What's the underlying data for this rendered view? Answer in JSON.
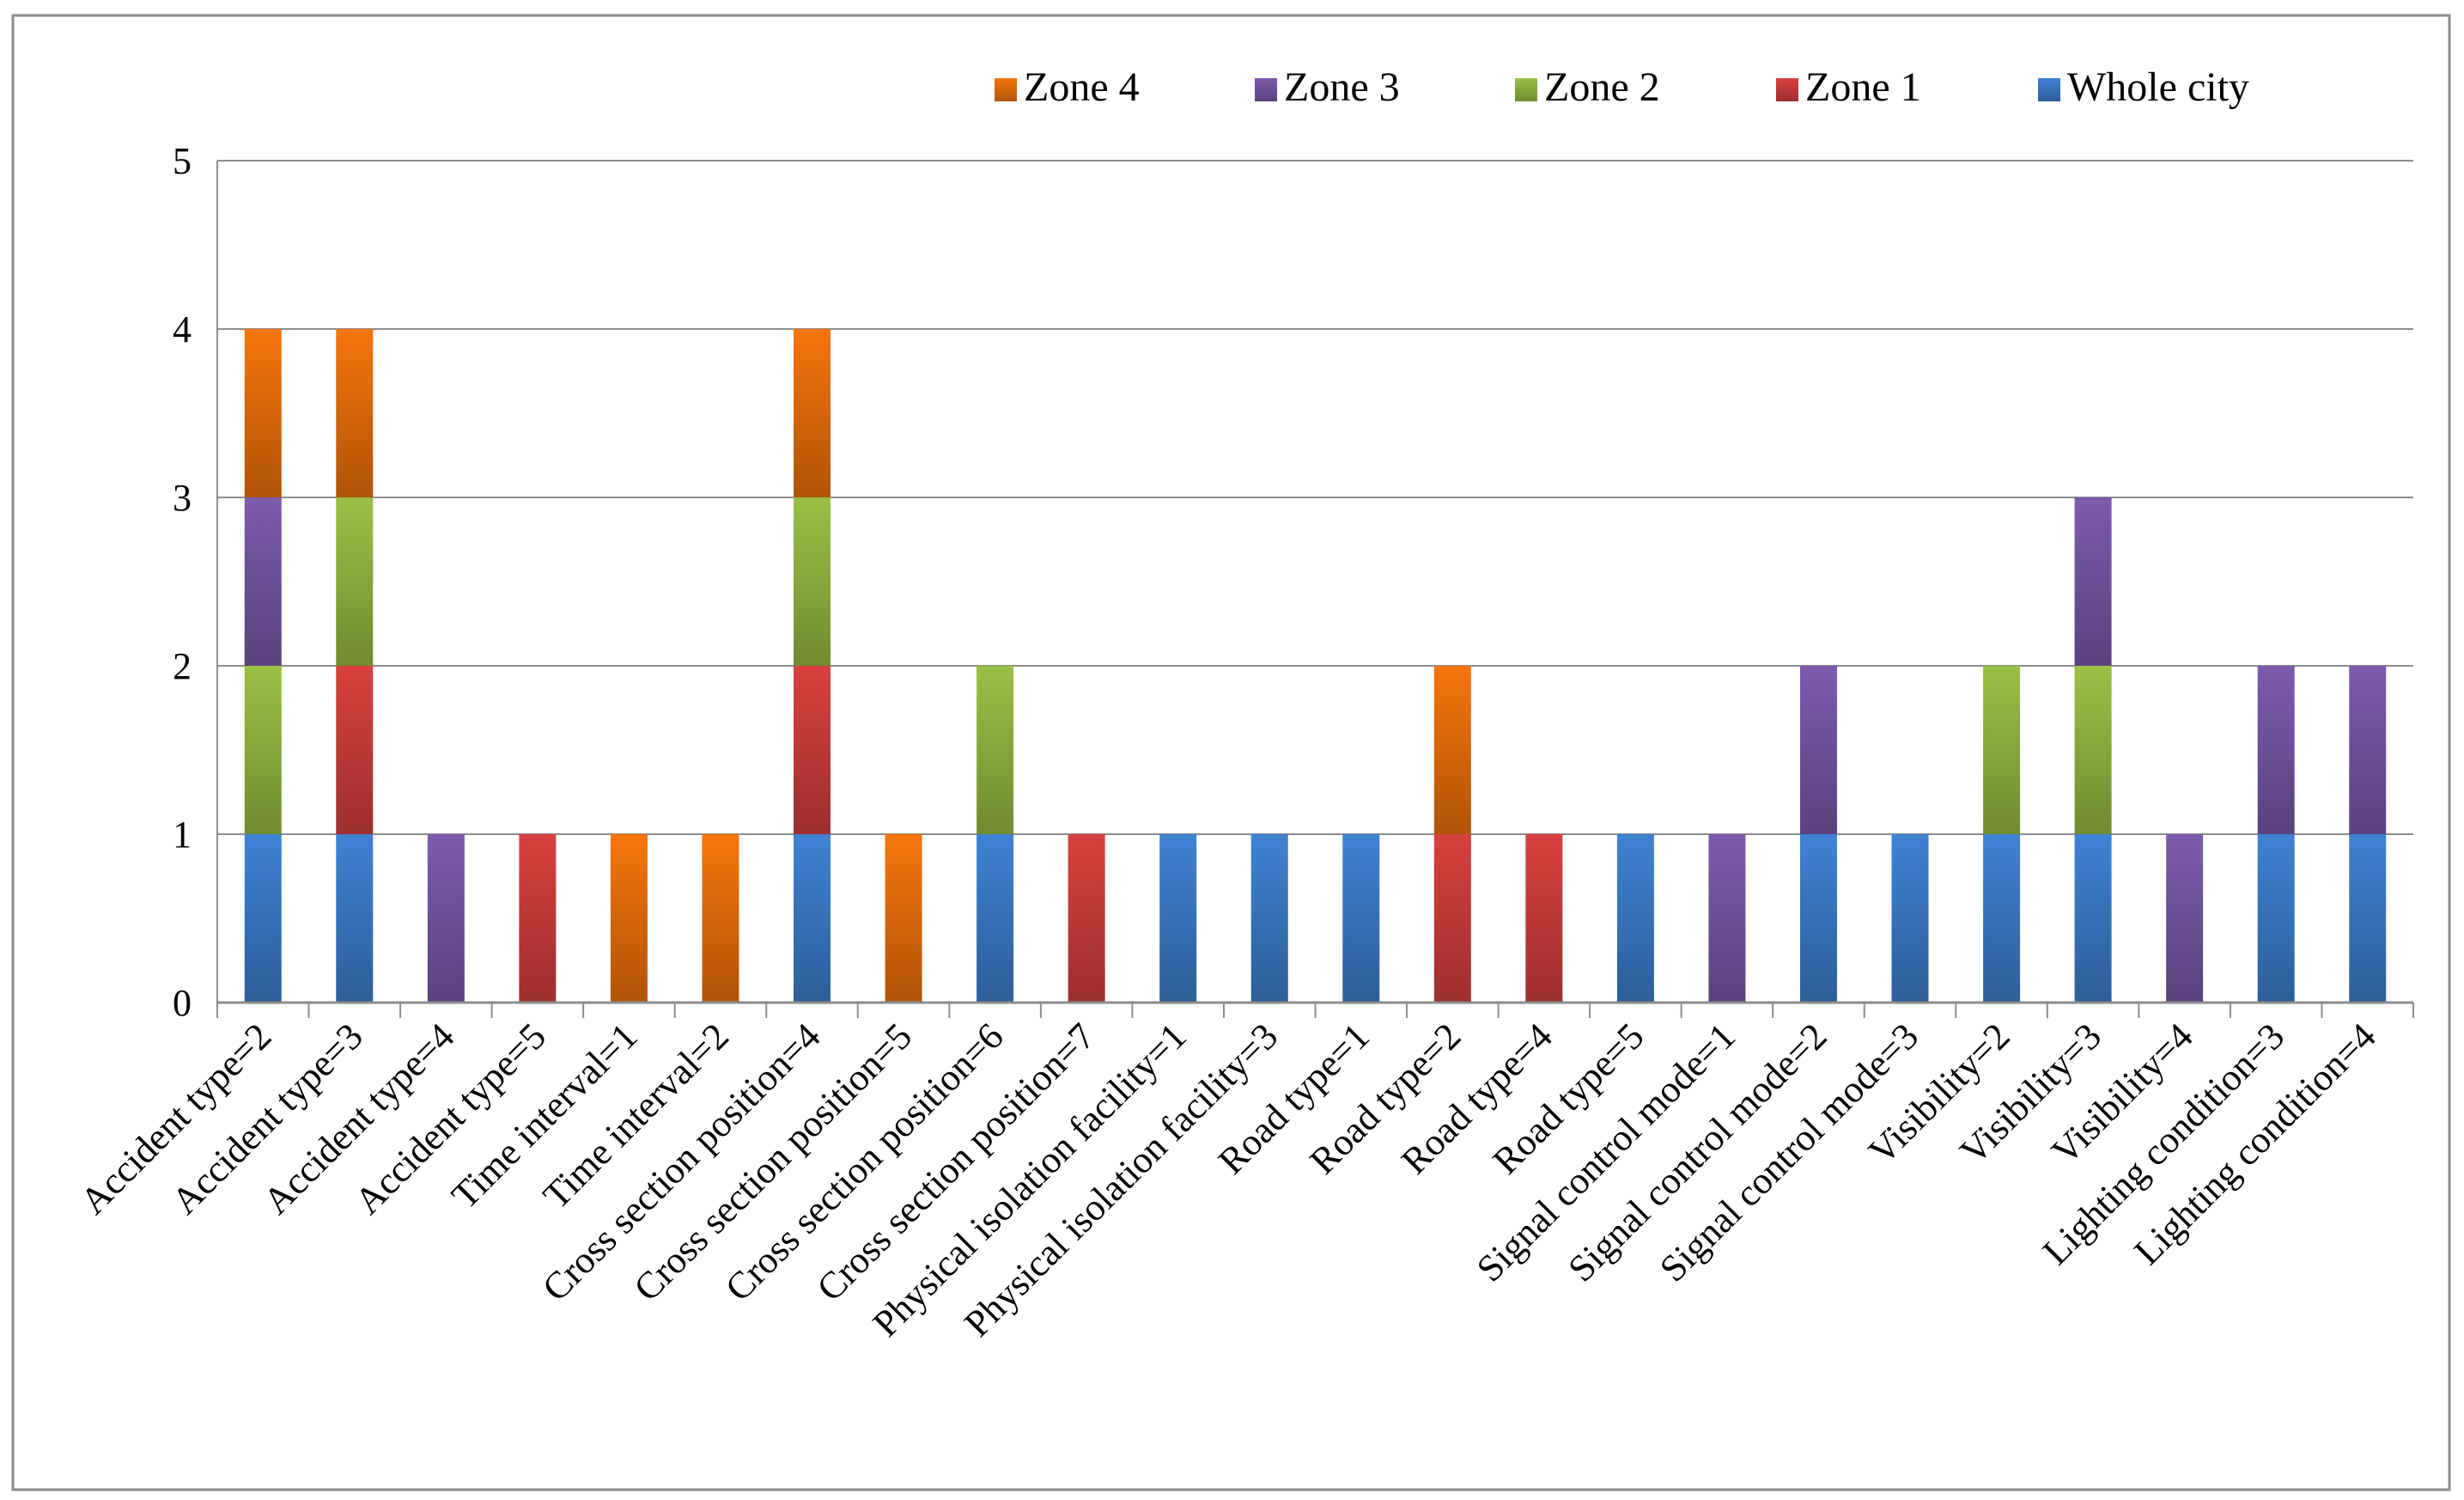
{
  "chart_data": {
    "type": "bar",
    "stacked": true,
    "title": "",
    "xlabel": "",
    "ylabel": "",
    "ylim": [
      0,
      5
    ],
    "yticks": [
      "0",
      "1",
      "2",
      "3",
      "4",
      "5"
    ],
    "grid": true,
    "legend_position": "top-right",
    "legend_order": [
      "Zone 4",
      "Zone 3",
      "Zone 2",
      "Zone 1",
      "Whole city"
    ],
    "categories": [
      "Accident type=2",
      "Accident type=3",
      "Accident type=4",
      "Accident type=5",
      "Time interval=1",
      "Time interval=2",
      "Cross section position=4",
      "Cross section position=5",
      "Cross section position=6",
      "Cross section position=7",
      "Physical isolation facility=1",
      "Physical isolation facility=3",
      "Road type=1",
      "Road type=2",
      "Road type=4",
      "Road type=5",
      "Signal control mode=1",
      "Signal control mode=2",
      "Signal control mode=3",
      "Visibility=2",
      "Visibility=3",
      "Visibility=4",
      "Lighting condition=3",
      "Lighting condition=4"
    ],
    "series": [
      {
        "name": "Whole city",
        "color": "#3a78c4",
        "values": [
          1,
          1,
          0,
          0,
          0,
          0,
          1,
          0,
          1,
          0,
          1,
          1,
          1,
          0,
          0,
          1,
          0,
          1,
          1,
          1,
          1,
          0,
          1,
          1
        ]
      },
      {
        "name": "Zone 1",
        "color": "#c83c3a",
        "values": [
          0,
          1,
          0,
          1,
          0,
          0,
          1,
          0,
          0,
          1,
          0,
          0,
          0,
          1,
          1,
          0,
          0,
          0,
          0,
          0,
          0,
          0,
          0,
          0
        ]
      },
      {
        "name": "Zone 2",
        "color": "#8fb23f",
        "values": [
          1,
          1,
          0,
          0,
          0,
          0,
          1,
          0,
          1,
          0,
          0,
          0,
          0,
          0,
          0,
          0,
          0,
          0,
          0,
          1,
          1,
          0,
          0,
          0
        ]
      },
      {
        "name": "Zone 3",
        "color": "#7454a0",
        "values": [
          1,
          0,
          1,
          0,
          0,
          0,
          0,
          0,
          0,
          0,
          0,
          0,
          0,
          0,
          0,
          0,
          1,
          1,
          0,
          0,
          1,
          1,
          1,
          1
        ]
      },
      {
        "name": "Zone 4",
        "color": "#e36c0a",
        "values": [
          1,
          1,
          0,
          0,
          1,
          1,
          1,
          1,
          0,
          0,
          0,
          0,
          0,
          1,
          0,
          0,
          0,
          0,
          0,
          0,
          0,
          0,
          0,
          0
        ]
      }
    ]
  }
}
